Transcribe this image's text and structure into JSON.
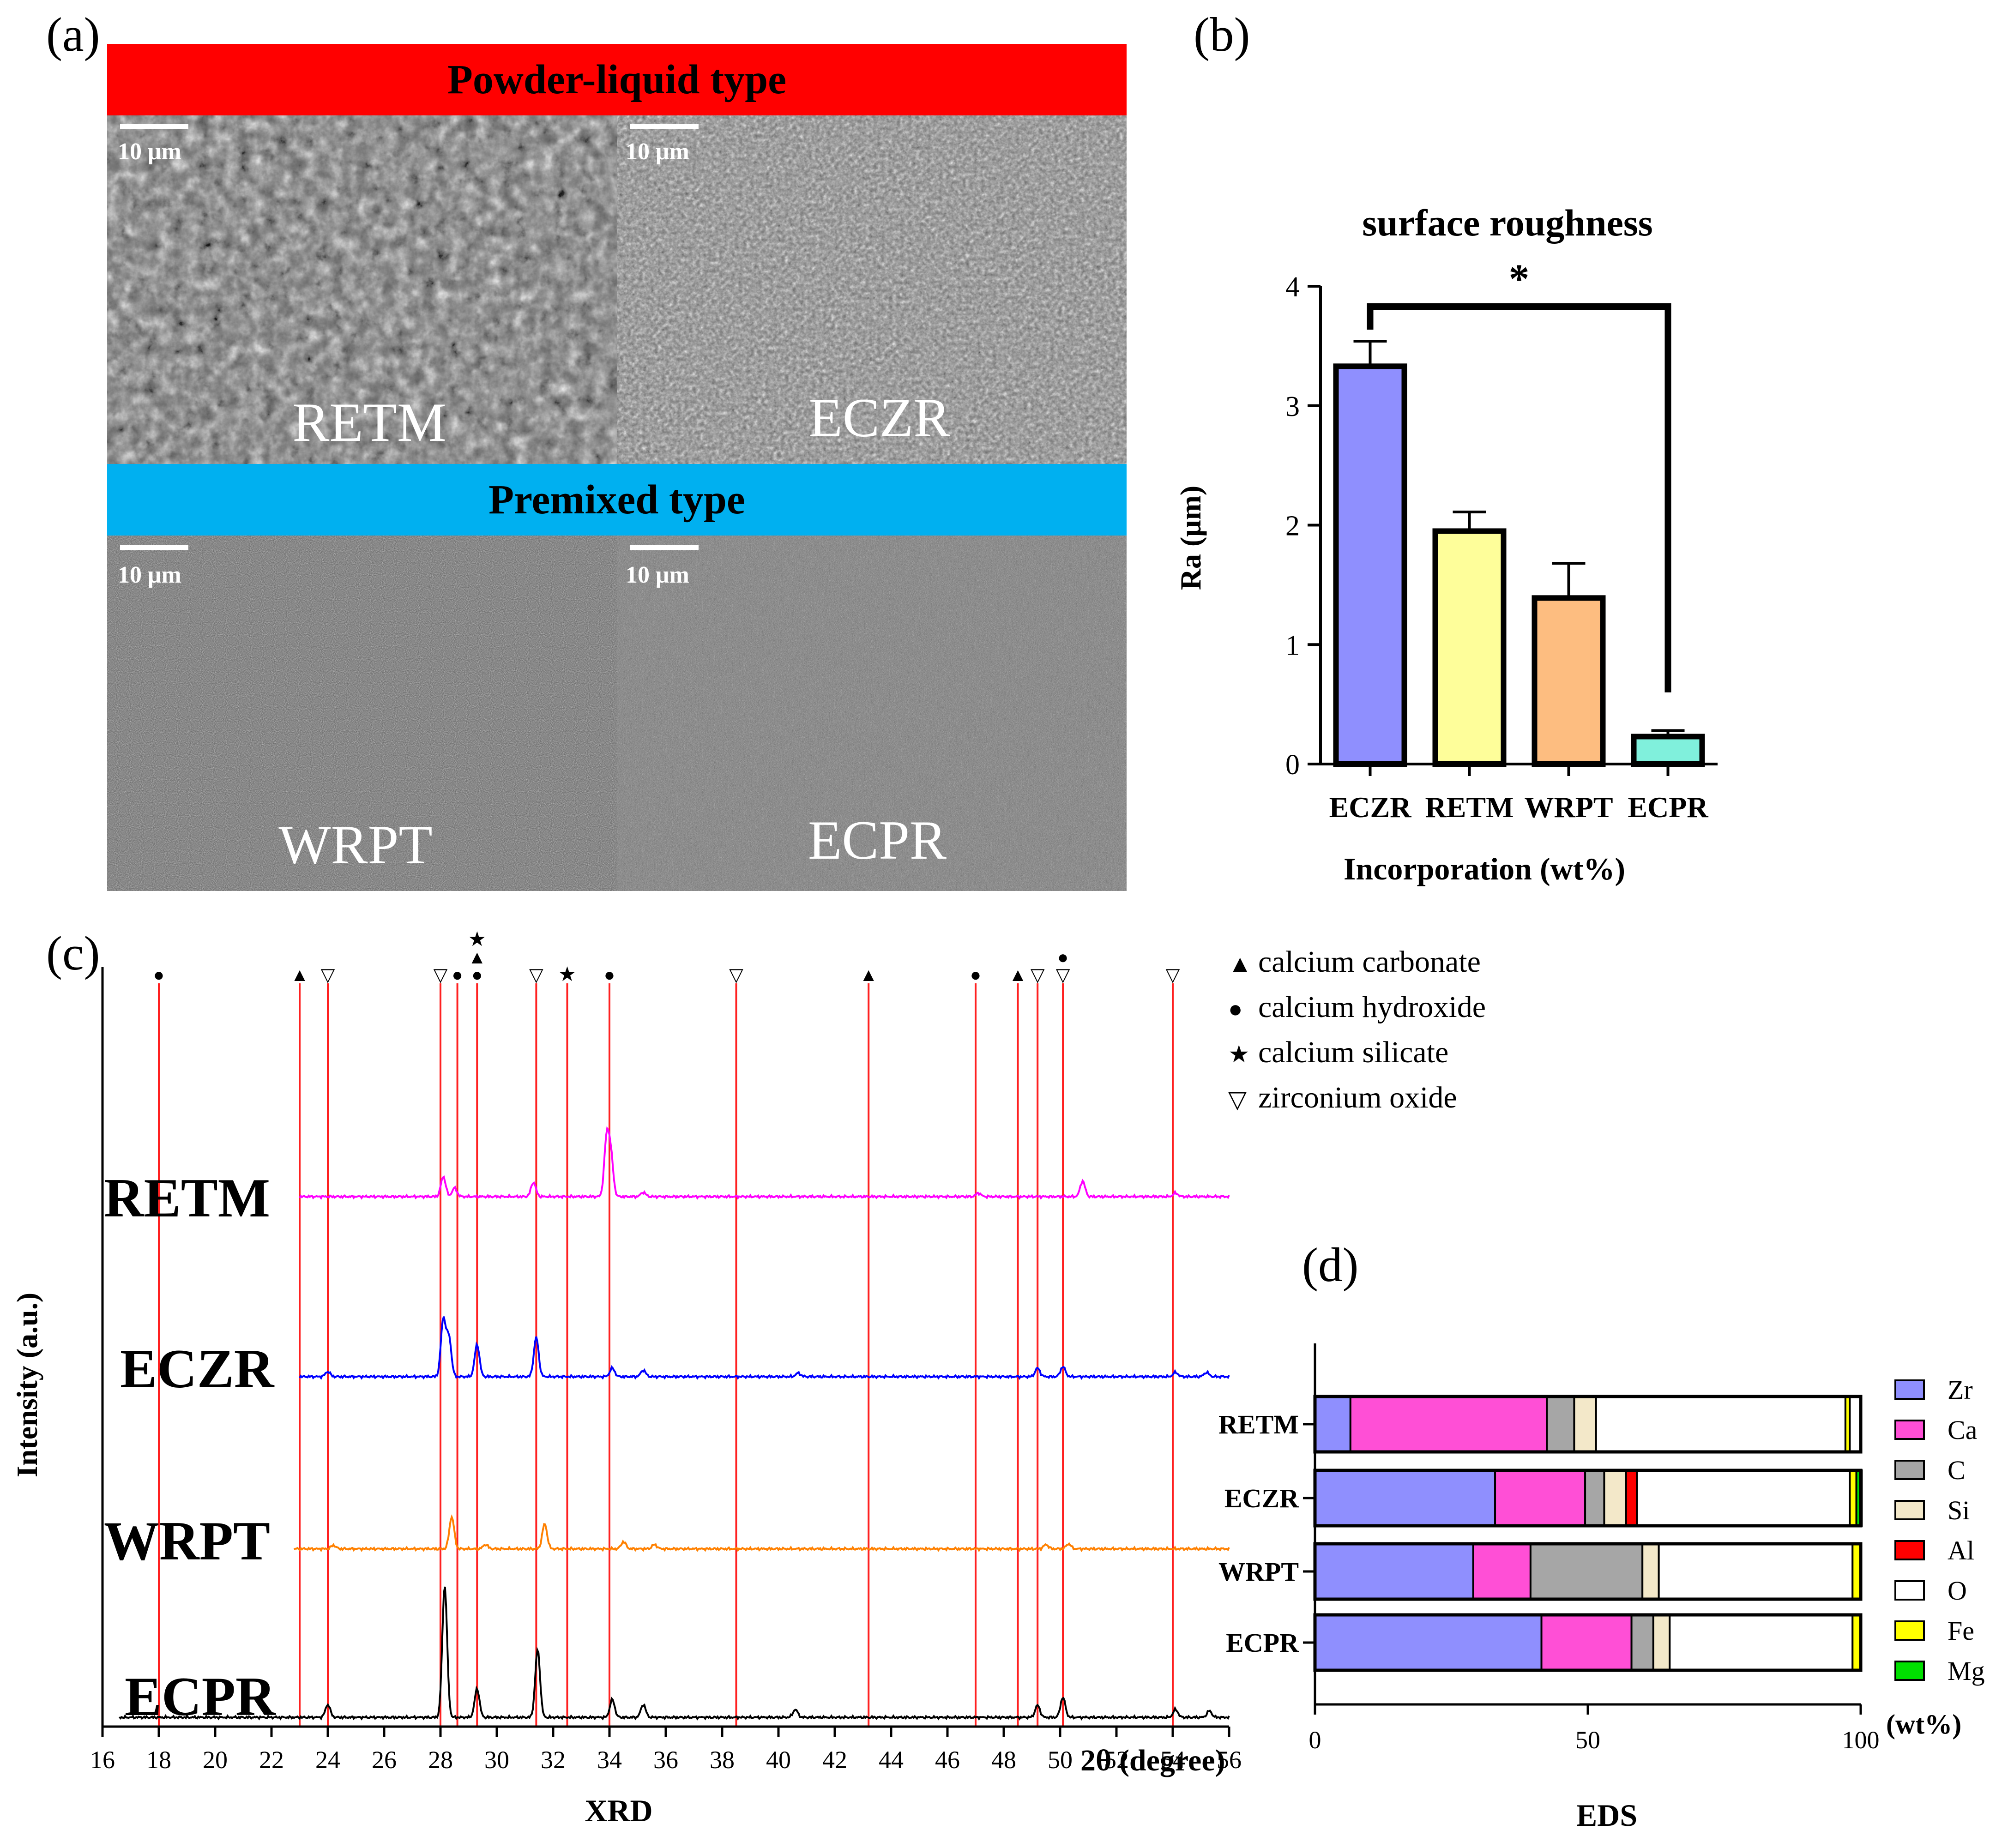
{
  "panel_labels": {
    "a": "(a)",
    "b": "(b)",
    "c": "(c)",
    "d": "(d)"
  },
  "panel_a": {
    "banner_top": {
      "text": "Powder-liquid type",
      "color": "#ff0000"
    },
    "banner_mid": {
      "text": "Premixed type",
      "color": "#00b0f0"
    },
    "scale_bar_label": "10 μm",
    "images": [
      {
        "label": "RETM"
      },
      {
        "label": "ECZR"
      },
      {
        "label": "WRPT"
      },
      {
        "label": "ECPR"
      }
    ]
  },
  "chart_data": [
    {
      "id": "b",
      "type": "bar",
      "title": "surface roughness",
      "xlabel": "Incorporation (wt%)",
      "ylabel": "Ra (μm)",
      "categories": [
        "ECZR",
        "RETM",
        "WRPT",
        "ECPR"
      ],
      "values": [
        3.33,
        1.95,
        1.39,
        0.23
      ],
      "errors": [
        0.21,
        0.16,
        0.29,
        0.05
      ],
      "colors": [
        "#8f8ffe",
        "#fefe9a",
        "#fdbd80",
        "#80f0dc"
      ],
      "ylim": [
        0,
        4
      ],
      "yticks": [
        "0",
        "1",
        "2",
        "3",
        "4"
      ],
      "significance": {
        "from": "ECZR",
        "to": "ECPR",
        "label": "*"
      }
    },
    {
      "id": "c",
      "type": "line",
      "title": "XRD",
      "xlabel": "2θ (degree)",
      "ylabel": "Intensity (a.u.)",
      "xlim": [
        16,
        56
      ],
      "xticks": [
        "16",
        "18",
        "20",
        "22",
        "24",
        "26",
        "28",
        "30",
        "32",
        "34",
        "36",
        "38",
        "40",
        "42",
        "44",
        "46",
        "48",
        "50",
        "52",
        "54",
        "56"
      ],
      "series": [
        {
          "name": "RETM",
          "color": "#ff00ff",
          "peaks": [
            [
              28.1,
              28
            ],
            [
              28.5,
              12
            ],
            [
              31.3,
              20
            ],
            [
              33.9,
              80
            ],
            [
              34.05,
              55
            ],
            [
              35.2,
              6
            ],
            [
              47.1,
              5
            ],
            [
              50.8,
              22
            ],
            [
              54.1,
              5
            ]
          ]
        },
        {
          "name": "ECZR",
          "color": "#0000ff",
          "peaks": [
            [
              24.0,
              7
            ],
            [
              28.1,
              80
            ],
            [
              28.3,
              55
            ],
            [
              29.3,
              45
            ],
            [
              31.4,
              55
            ],
            [
              34.1,
              12
            ],
            [
              35.2,
              9
            ],
            [
              40.7,
              5
            ],
            [
              49.2,
              12
            ],
            [
              50.1,
              14
            ],
            [
              54.1,
              6
            ],
            [
              55.2,
              6
            ]
          ]
        },
        {
          "name": "WRPT",
          "color": "#ff8000",
          "peaks": [
            [
              24.2,
              5
            ],
            [
              28.4,
              45
            ],
            [
              29.6,
              6
            ],
            [
              31.7,
              35
            ],
            [
              34.5,
              10
            ],
            [
              35.6,
              6
            ],
            [
              49.5,
              6
            ],
            [
              50.3,
              7
            ]
          ]
        },
        {
          "name": "ECPR",
          "color": "#000000",
          "peaks": [
            [
              24.0,
              18
            ],
            [
              28.15,
              185
            ],
            [
              29.3,
              40
            ],
            [
              31.45,
              95
            ],
            [
              34.1,
              25
            ],
            [
              35.2,
              18
            ],
            [
              40.6,
              11
            ],
            [
              49.2,
              17
            ],
            [
              50.1,
              28
            ],
            [
              54.1,
              11
            ],
            [
              55.3,
              9
            ]
          ]
        }
      ],
      "reference_lines": [
        18,
        23,
        24,
        28,
        28.6,
        29.3,
        31.4,
        32.5,
        34,
        38.5,
        43.2,
        47,
        48.5,
        49.2,
        50.1,
        54
      ],
      "markers": [
        {
          "x": 18,
          "symbols": "●"
        },
        {
          "x": 23,
          "symbols": "▲"
        },
        {
          "x": 24,
          "symbols": "▽"
        },
        {
          "x": 28,
          "symbols": "▽"
        },
        {
          "x": 28.6,
          "symbols": "●"
        },
        {
          "x": 29.3,
          "symbols": "★▲●"
        },
        {
          "x": 31.4,
          "symbols": "▽"
        },
        {
          "x": 32.5,
          "symbols": "★"
        },
        {
          "x": 34,
          "symbols": "●"
        },
        {
          "x": 38.5,
          "symbols": "▽"
        },
        {
          "x": 43.2,
          "symbols": "▲"
        },
        {
          "x": 47,
          "symbols": "●"
        },
        {
          "x": 48.5,
          "symbols": "▲"
        },
        {
          "x": 49.2,
          "symbols": "▽"
        },
        {
          "x": 50.1,
          "symbols": "●▽"
        },
        {
          "x": 54,
          "symbols": "▽"
        }
      ],
      "legend": [
        {
          "symbol": "▲",
          "label": "calcium carbonate"
        },
        {
          "symbol": "●",
          "label": "calcium hydroxide"
        },
        {
          "symbol": "★",
          "label": "calcium silicate"
        },
        {
          "symbol": "▽",
          "label": "zirconium oxide"
        }
      ]
    },
    {
      "id": "d",
      "type": "bar",
      "orientation": "horizontal-stacked",
      "title": "EDS",
      "xlabel": "(wt%)",
      "xlim": [
        0,
        100
      ],
      "xticks": [
        "0",
        "50",
        "100"
      ],
      "categories": [
        "RETM",
        "ECZR",
        "WRPT",
        "ECPR"
      ],
      "elements": [
        "Zr",
        "Ca",
        "C",
        "Si",
        "Al",
        "O",
        "Fe",
        "Mg"
      ],
      "colors": [
        "#8f8ffe",
        "#ff4fd6",
        "#a6a6a6",
        "#f3e8c9",
        "#ff0000",
        "#ffffff",
        "#ffff00",
        "#00e000"
      ],
      "series": [
        {
          "name": "Zr",
          "values": [
            6.5,
            33,
            29,
            41.5
          ]
        },
        {
          "name": "Ca",
          "values": [
            36,
            16.5,
            10.5,
            16.5
          ]
        },
        {
          "name": "C",
          "values": [
            5,
            3.5,
            20.5,
            4
          ]
        },
        {
          "name": "Si",
          "values": [
            4,
            4,
            3,
            3
          ]
        },
        {
          "name": "Al",
          "values": [
            0,
            2,
            0,
            0
          ]
        },
        {
          "name": "O",
          "values": [
            45.7,
            39,
            35.5,
            33.5
          ]
        },
        {
          "name": "Fe",
          "values": [
            0.8,
            1.2,
            1.5,
            1.5
          ]
        },
        {
          "name": "Mg",
          "values": [
            0,
            1,
            0,
            0
          ]
        }
      ]
    }
  ]
}
